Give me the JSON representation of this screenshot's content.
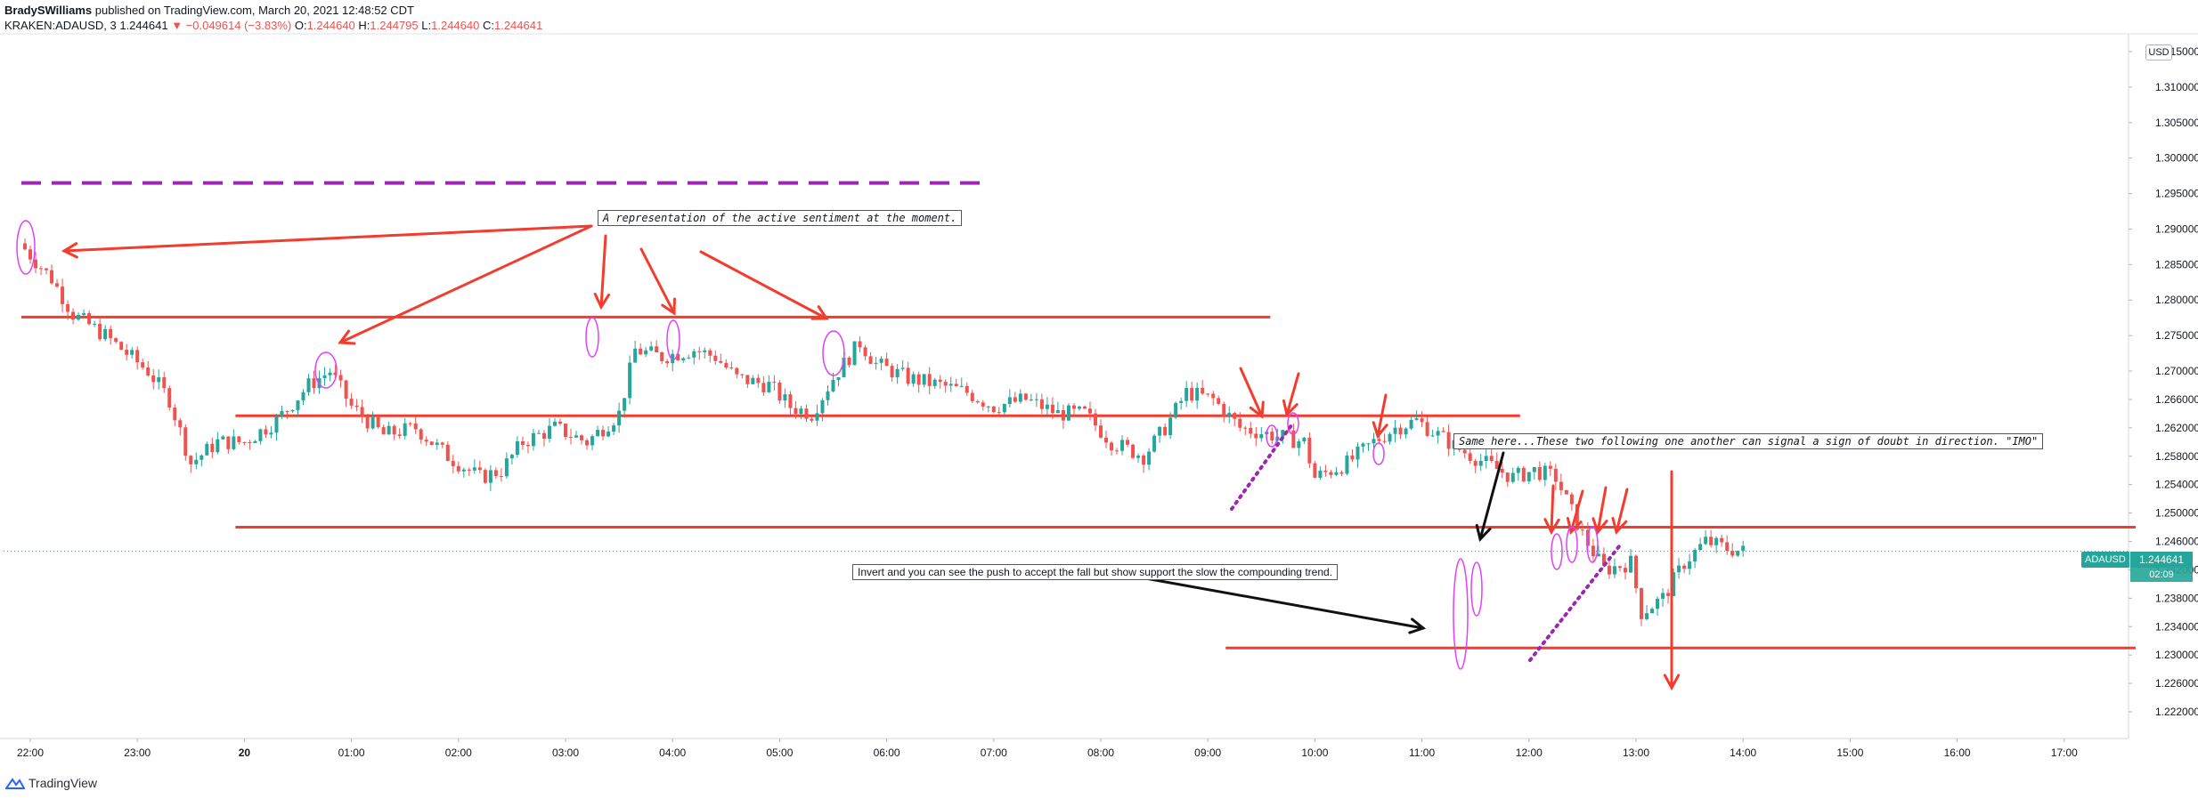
{
  "header": {
    "author": "BradySWilliams",
    "published": "published on TradingView.com, March 20, 2021 12:48:52 CDT",
    "symbol_line": "KRAKEN:ADAUSD, 3",
    "last": "1.244641",
    "change": "▼ −0.049614 (−3.83%)",
    "o_label": "O:",
    "o_value": "1.244640",
    "h_label": "H:",
    "h_value": "1.244795",
    "l_label": "L:",
    "l_value": "1.244640",
    "c_label": "C:",
    "c_value": "1.244641"
  },
  "brand": "TradingView",
  "currency": "USD",
  "symbol_badge": "ADAUSD",
  "price_badge": "1.244641",
  "countdown_badge": "02:09",
  "annotations": {
    "note1": "A representation of the active sentiment at the moment.",
    "note2": "Same here...These two following one another can signal a sign of doubt in direction. \"IMO\"",
    "note3": "Invert and you can see the push to accept the fall but show support the slow the compounding trend."
  },
  "colors": {
    "up": "#26a69a",
    "down": "#ef5350",
    "drawing": "#f23c2e",
    "dashed": "#9c27b0",
    "ellipse": "#e040fb",
    "dotted": "#9c27b0"
  },
  "chart_data": {
    "type": "candlestick",
    "symbol": "KRAKEN:ADAUSD",
    "interval": "3",
    "ylim": [
      1.219,
      1.316
    ],
    "y_ticks": [
      "1.222000",
      "1.226000",
      "1.230000",
      "1.234000",
      "1.238000",
      "1.242000",
      "1.246000",
      "1.250000",
      "1.254000",
      "1.258000",
      "1.262000",
      "1.266000",
      "1.270000",
      "1.275000",
      "1.280000",
      "1.285000",
      "1.290000",
      "1.295000",
      "1.300000",
      "1.305000",
      "1.310000",
      "1.315000"
    ],
    "x_ticks": [
      "22:00",
      "23:00",
      "20",
      "01:00",
      "02:00",
      "03:00",
      "04:00",
      "05:00",
      "06:00",
      "07:00",
      "08:00",
      "09:00",
      "10:00",
      "11:00",
      "12:00",
      "13:00",
      "14:00",
      "15:00",
      "16:00",
      "17:00"
    ],
    "price_anchors": [
      [
        21.9,
        1.288
      ],
      [
        22.2,
        1.283
      ],
      [
        22.4,
        1.278
      ],
      [
        22.7,
        1.275
      ],
      [
        23.1,
        1.27
      ],
      [
        23.3,
        1.266
      ],
      [
        23.5,
        1.257
      ],
      [
        23.75,
        1.26
      ],
      [
        24.0,
        1.26
      ],
      [
        24.3,
        1.263
      ],
      [
        24.6,
        1.268
      ],
      [
        24.8,
        1.27
      ],
      [
        25.0,
        1.265
      ],
      [
        25.3,
        1.261
      ],
      [
        25.6,
        1.262
      ],
      [
        25.9,
        1.258
      ],
      [
        26.2,
        1.255
      ],
      [
        26.4,
        1.256
      ],
      [
        26.6,
        1.26
      ],
      [
        26.9,
        1.262
      ],
      [
        27.2,
        1.26
      ],
      [
        27.5,
        1.264
      ],
      [
        27.65,
        1.273
      ],
      [
        27.9,
        1.272
      ],
      [
        28.2,
        1.273
      ],
      [
        28.4,
        1.272
      ],
      [
        28.6,
        1.269
      ],
      [
        28.9,
        1.268
      ],
      [
        29.1,
        1.265
      ],
      [
        29.3,
        1.264
      ],
      [
        29.5,
        1.269
      ],
      [
        29.75,
        1.274
      ],
      [
        29.9,
        1.271
      ],
      [
        30.2,
        1.269
      ],
      [
        30.5,
        1.268
      ],
      [
        30.75,
        1.267
      ],
      [
        31.0,
        1.265
      ],
      [
        31.3,
        1.266
      ],
      [
        31.6,
        1.264
      ],
      [
        31.85,
        1.264
      ],
      [
        32.1,
        1.26
      ],
      [
        32.4,
        1.258
      ],
      [
        32.6,
        1.262
      ],
      [
        32.8,
        1.267
      ],
      [
        33.05,
        1.266
      ],
      [
        33.3,
        1.262
      ],
      [
        33.6,
        1.261
      ],
      [
        33.9,
        1.26
      ],
      [
        34.0,
        1.255
      ],
      [
        34.3,
        1.257
      ],
      [
        34.55,
        1.26
      ],
      [
        34.75,
        1.262
      ],
      [
        34.95,
        1.263
      ],
      [
        35.15,
        1.261
      ],
      [
        35.35,
        1.259
      ],
      [
        35.6,
        1.257
      ],
      [
        35.85,
        1.255
      ],
      [
        36.05,
        1.256
      ],
      [
        36.25,
        1.255
      ],
      [
        36.5,
        1.247
      ],
      [
        36.7,
        1.242
      ],
      [
        36.95,
        1.243
      ],
      [
        37.05,
        1.236
      ],
      [
        37.25,
        1.238
      ],
      [
        37.45,
        1.243
      ],
      [
        37.65,
        1.246
      ],
      [
        37.85,
        1.245
      ],
      [
        38.0,
        1.2446
      ]
    ],
    "horizontal_lines": [
      {
        "price": 1.2776,
        "from": "21:55",
        "to": "09:35",
        "style": "solid",
        "color": "#f23c2e"
      },
      {
        "price": 1.2637,
        "from": "23:55",
        "to": "11:55",
        "style": "solid",
        "color": "#f23c2e"
      },
      {
        "price": 1.248,
        "from": "23:55",
        "to": "17:40",
        "style": "solid",
        "color": "#f23c2e"
      },
      {
        "price": 1.231,
        "from": "09:10",
        "to": "17:40",
        "style": "solid",
        "color": "#f23c2e"
      },
      {
        "price": 1.2965,
        "from": "21:55",
        "to": "06:55",
        "style": "dashed",
        "color": "#9c27b0"
      }
    ],
    "last_price": 1.244641
  }
}
